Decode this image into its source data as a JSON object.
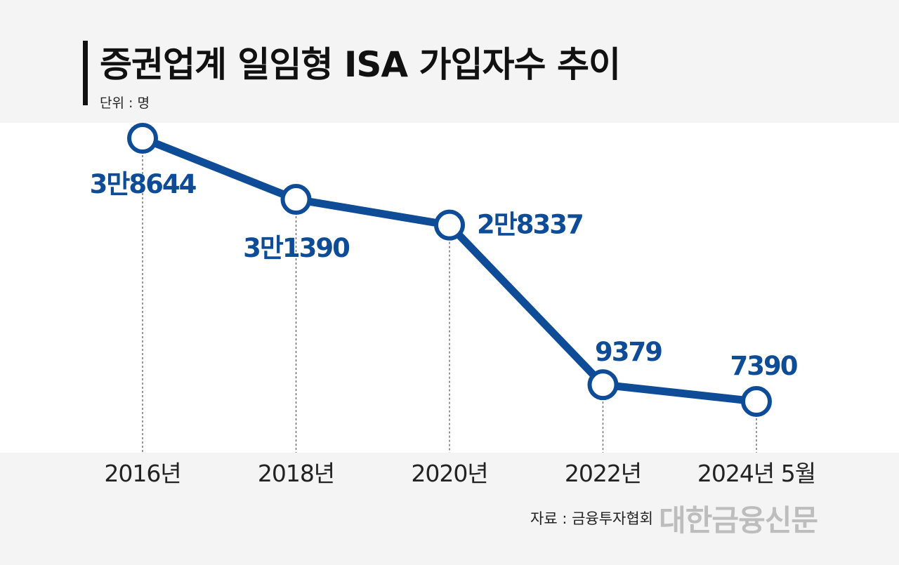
{
  "chart_data": {
    "type": "line",
    "title": "증권업계 일임형 ISA 가입자수 추이",
    "unit_label": "단위 : 명",
    "categories": [
      "2016년",
      "2018년",
      "2020년",
      "2022년",
      "2024년 5월"
    ],
    "series": [
      {
        "name": "가입자수",
        "values": [
          38644,
          31390,
          28337,
          9379,
          7390
        ],
        "labels": [
          "3만8644",
          "3만1390",
          "2만8337",
          "9379",
          "7390"
        ]
      }
    ],
    "ylabel": "명",
    "ylim": [
      0,
      40000
    ],
    "grid": false,
    "line_color": "#0e4c97"
  },
  "source": "자료 : 금융투자협회",
  "logo": "대한금융신문"
}
